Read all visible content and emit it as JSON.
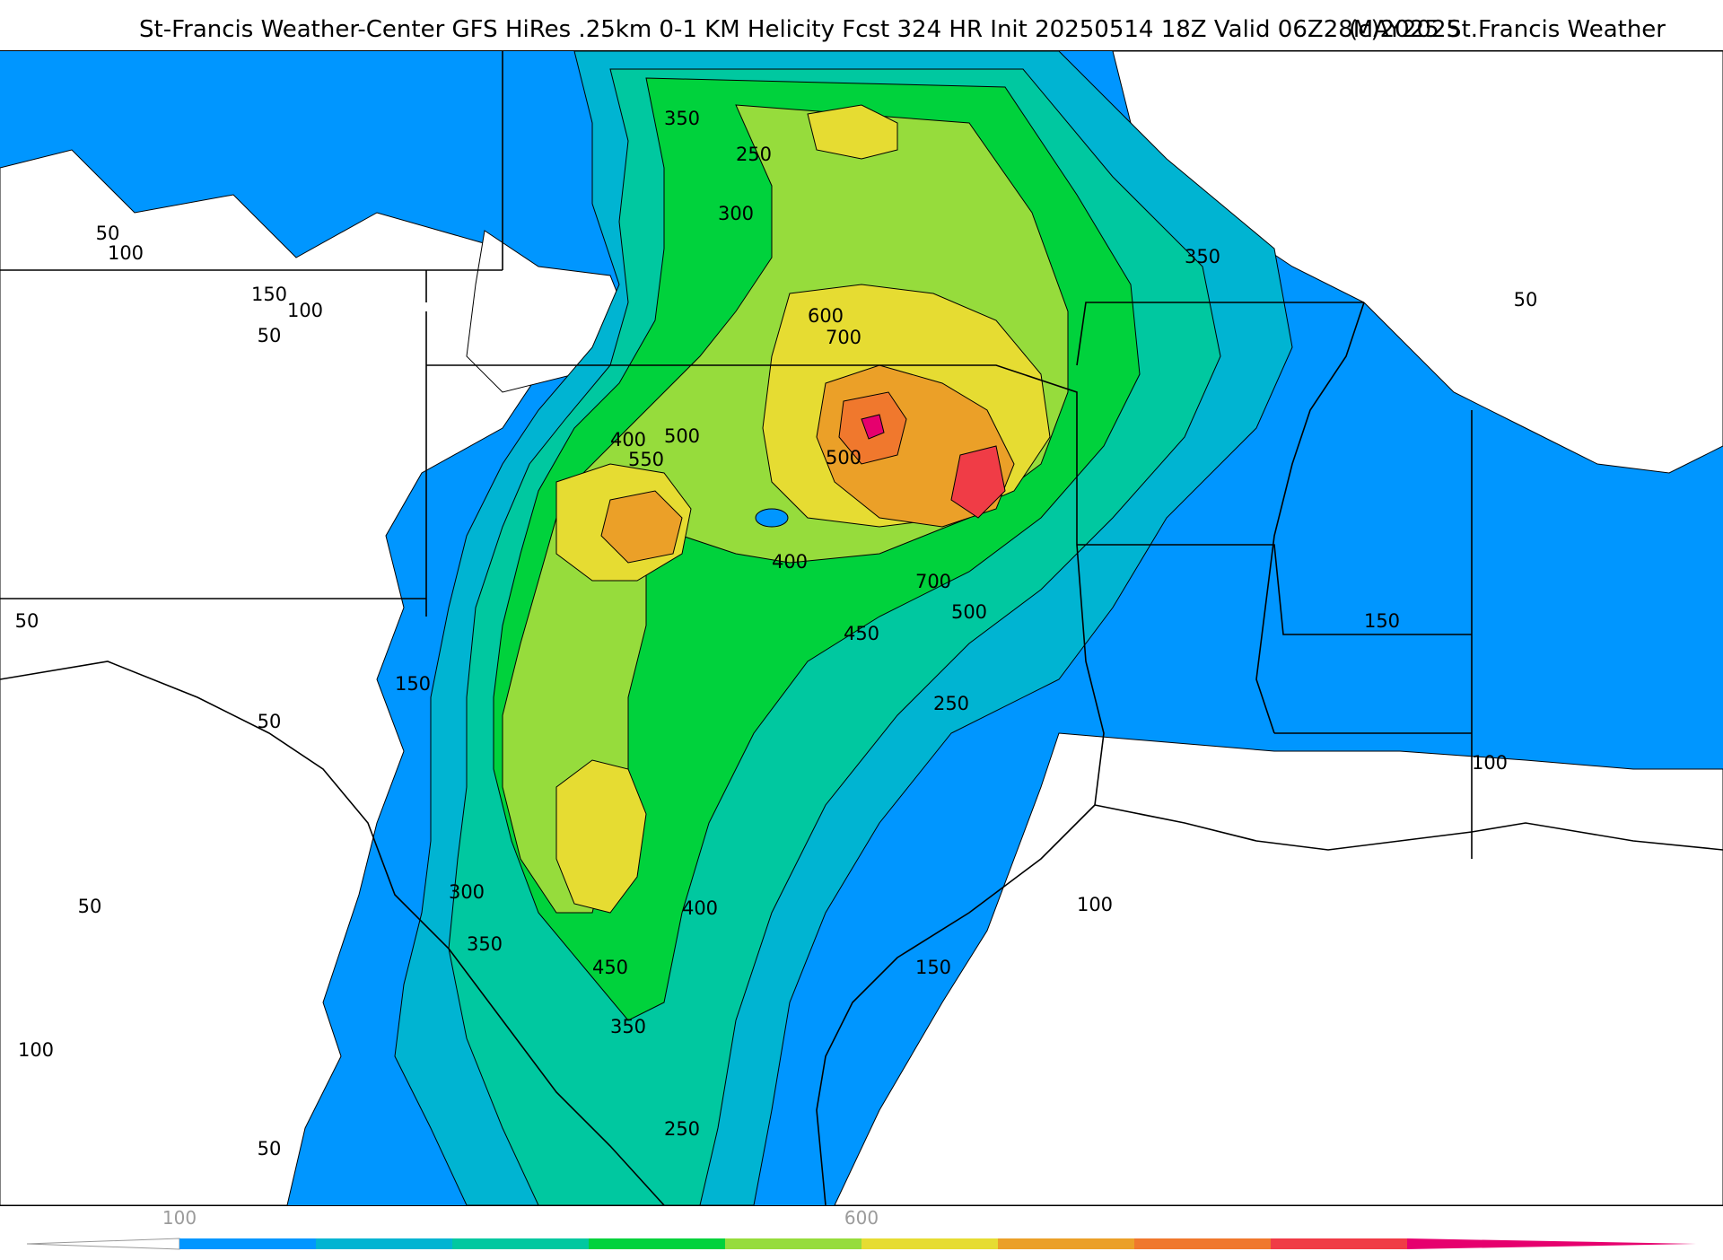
{
  "title": {
    "main": "St-Francis Weather-Center GFS HiRes .25km 0-1 KM Helicity Fcst 324 HR Init 20250514 18Z  Valid 06Z28MAY2025",
    "copyright": "(c)2025 St.Francis Weather"
  },
  "colors": {
    "c50": "#ffffff",
    "c100": "#0096ff",
    "c150": "#00b4d2",
    "c200": "#00c8a0",
    "c250": "#00d23c",
    "c300": "#96dc3c",
    "c400": "#e6dc32",
    "c500": "#eba028",
    "c600": "#f0782d",
    "c700": "#f03c46",
    "c800": "#e6006e",
    "outline": "#000000"
  },
  "colorbar": {
    "tick_labels": [
      "100",
      "600"
    ],
    "bins": [
      "#ffffff",
      "#0096ff",
      "#00b4d2",
      "#00c8a0",
      "#00d23c",
      "#96dc3c",
      "#e6dc32",
      "#eba028",
      "#f0782d",
      "#f03c46",
      "#e6006e"
    ]
  },
  "contour_labels": [
    "350",
    "250",
    "300",
    "350",
    "50",
    "100",
    "150",
    "100",
    "50",
    "600",
    "700",
    "400",
    "500",
    "550",
    "500",
    "400",
    "700",
    "500",
    "450",
    "250",
    "150",
    "50",
    "50",
    "150",
    "100",
    "50",
    "100",
    "300",
    "350",
    "450",
    "400",
    "150",
    "350",
    "250",
    "50",
    "100",
    "50"
  ]
}
